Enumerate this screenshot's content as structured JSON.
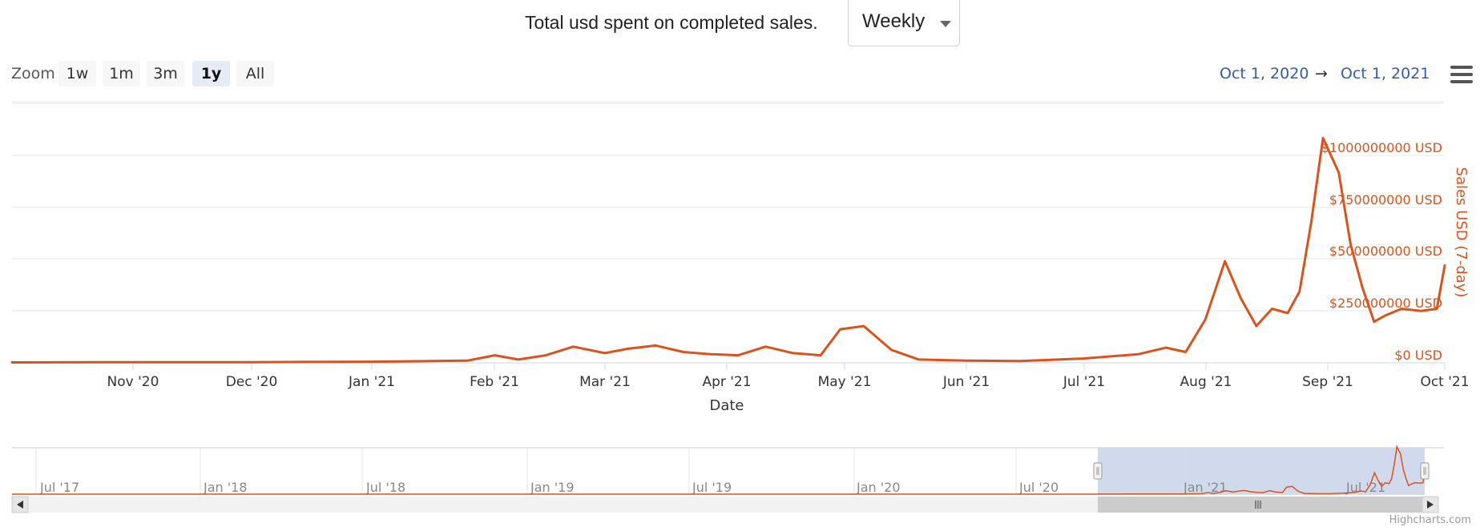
{
  "header": {
    "title": "Total usd spent on completed sales.",
    "period_select": "Weekly"
  },
  "zoom": {
    "label": "Zoom",
    "buttons": [
      "1w",
      "1m",
      "3m",
      "1y",
      "All"
    ],
    "active": "1y"
  },
  "range": {
    "from": "Oct 1, 2020",
    "arrow": "→",
    "to": "Oct 1, 2021"
  },
  "credits": "Highcharts.com",
  "icons": {
    "menu": "hamburger-menu-icon"
  },
  "colors": {
    "series": "#d9531e",
    "navigator_mask": "#ccd6eb",
    "range_text": "#335cad"
  },
  "chart_data": {
    "type": "line",
    "title": "Total usd spent on completed sales.",
    "xlabel": "Date",
    "ylabel": "Sales USD (7-day)",
    "y_ticks": [
      "$0 USD",
      "$250000000 USD",
      "$500000000 USD",
      "$750000000 USD",
      "$1000000000 USD"
    ],
    "ylim": [
      0,
      1000000000
    ],
    "x_ticks": [
      "Nov '20",
      "Dec '20",
      "Jan '21",
      "Feb '21",
      "Mar '21",
      "Apr '21",
      "May '21",
      "Jun '21",
      "Jul '21",
      "Aug '21",
      "Sep '21",
      "Oct '21"
    ],
    "xlim": [
      "2020-10-01",
      "2021-10-01"
    ],
    "grid": true,
    "series": [
      {
        "x": [
          "2020-10-01",
          "2020-11-01",
          "2020-12-01",
          "2021-01-01",
          "2021-01-25",
          "2021-02-01",
          "2021-02-07",
          "2021-02-14",
          "2021-02-21",
          "2021-03-01",
          "2021-03-07",
          "2021-03-14",
          "2021-03-21",
          "2021-03-28",
          "2021-04-04",
          "2021-04-11",
          "2021-04-18",
          "2021-04-25",
          "2021-04-30",
          "2021-05-06",
          "2021-05-13",
          "2021-05-20",
          "2021-06-01",
          "2021-06-15",
          "2021-07-01",
          "2021-07-15",
          "2021-07-22",
          "2021-07-27",
          "2021-08-01",
          "2021-08-06",
          "2021-08-10",
          "2021-08-14",
          "2021-08-18",
          "2021-08-22",
          "2021-08-25",
          "2021-08-28",
          "2021-08-31",
          "2021-09-04",
          "2021-09-07",
          "2021-09-10",
          "2021-09-13",
          "2021-09-16",
          "2021-09-20",
          "2021-09-25",
          "2021-09-29",
          "2021-10-01"
        ],
        "y": [
          2000000,
          3000000,
          3000000,
          5000000,
          10000000,
          35000000,
          15000000,
          35000000,
          75000000,
          45000000,
          65000000,
          80000000,
          50000000,
          40000000,
          35000000,
          75000000,
          45000000,
          35000000,
          155000000,
          170000000,
          60000000,
          15000000,
          10000000,
          8000000,
          20000000,
          40000000,
          70000000,
          50000000,
          200000000,
          470000000,
          300000000,
          170000000,
          250000000,
          230000000,
          330000000,
          650000000,
          1040000000,
          880000000,
          550000000,
          350000000,
          190000000,
          220000000,
          250000000,
          240000000,
          250000000,
          450000000
        ]
      }
    ],
    "navigator": {
      "x_ticks": [
        "Jul '17",
        "Jan '18",
        "Jul '18",
        "Jan '19",
        "Jul '19",
        "Jan '20",
        "Jul '20",
        "Jan '21",
        "Jul '21"
      ]
    }
  }
}
